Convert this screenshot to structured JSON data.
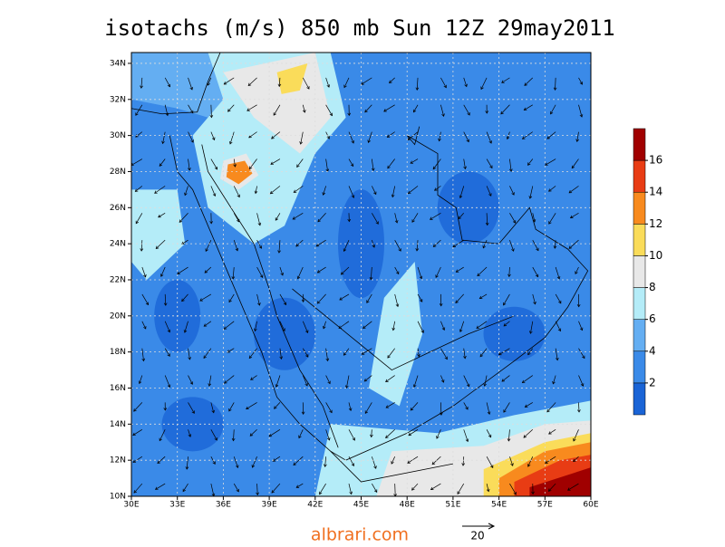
{
  "title": "isotachs (m/s) 850 mb Sun 12Z 29may2011",
  "map": {
    "xlim": [
      30,
      60
    ],
    "ylim": [
      10,
      34.6
    ],
    "xticks": [
      {
        "value": 30,
        "label": "30E"
      },
      {
        "value": 33,
        "label": "33E"
      },
      {
        "value": 36,
        "label": "36E"
      },
      {
        "value": 39,
        "label": "39E"
      },
      {
        "value": 42,
        "label": "42E"
      },
      {
        "value": 45,
        "label": "45E"
      },
      {
        "value": 48,
        "label": "48E"
      },
      {
        "value": 51,
        "label": "51E"
      },
      {
        "value": 54,
        "label": "54E"
      },
      {
        "value": 57,
        "label": "57E"
      },
      {
        "value": 60,
        "label": "60E"
      }
    ],
    "yticks": [
      {
        "value": 10,
        "label": "10N"
      },
      {
        "value": 12,
        "label": "12N"
      },
      {
        "value": 14,
        "label": "14N"
      },
      {
        "value": 16,
        "label": "16N"
      },
      {
        "value": 18,
        "label": "18N"
      },
      {
        "value": 20,
        "label": "20N"
      },
      {
        "value": 22,
        "label": "22N"
      },
      {
        "value": 24,
        "label": "24N"
      },
      {
        "value": 26,
        "label": "26N"
      },
      {
        "value": 28,
        "label": "28N"
      },
      {
        "value": 30,
        "label": "30N"
      },
      {
        "value": 32,
        "label": "32N"
      },
      {
        "value": 34,
        "label": "34N"
      }
    ]
  },
  "colorbar": {
    "range": [
      0,
      18
    ],
    "levels": [
      2,
      4,
      6,
      8,
      10,
      12,
      14,
      16
    ],
    "colors": [
      "#1a64d6",
      "#3a8ae8",
      "#64aef2",
      "#b4ecf8",
      "#e8e8e8",
      "#fadc5a",
      "#f88a1e",
      "#e83c14",
      "#a00000"
    ]
  },
  "reference_vector": "20",
  "watermark": "albrari.com"
}
